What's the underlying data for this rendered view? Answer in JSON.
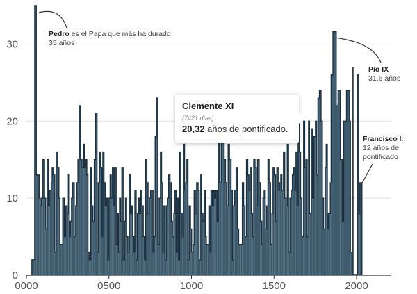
{
  "chart_data": {
    "type": "bar",
    "x_ticks": [
      "0000",
      "0500",
      "1000",
      "1500",
      "2000"
    ],
    "y_ticks": [
      "0",
      "10",
      "20",
      "30"
    ],
    "xlim": [
      0,
      2050
    ],
    "ylim": [
      0,
      35
    ],
    "grid": true,
    "bar_color": "#3e5a6d",
    "outline_color": "#1c3242",
    "points": [
      [
        33,
        2
      ],
      [
        41,
        2
      ],
      [
        50,
        35
      ],
      [
        60,
        13
      ],
      [
        70,
        13
      ],
      [
        77,
        10
      ],
      [
        83,
        9
      ],
      [
        90,
        10
      ],
      [
        100,
        15
      ],
      [
        110,
        10
      ],
      [
        117,
        6
      ],
      [
        125,
        15
      ],
      [
        133,
        9
      ],
      [
        140,
        11
      ],
      [
        150,
        12
      ],
      [
        156,
        14
      ],
      [
        164,
        13
      ],
      [
        172,
        3
      ],
      [
        180,
        16
      ],
      [
        190,
        14
      ],
      [
        197,
        10
      ],
      [
        203,
        4
      ],
      [
        211,
        4
      ],
      [
        220,
        10
      ],
      [
        229,
        5
      ],
      [
        237,
        9
      ],
      [
        247,
        8
      ],
      [
        254,
        13
      ],
      [
        260,
        5
      ],
      [
        266,
        7
      ],
      [
        273,
        10
      ],
      [
        280,
        12
      ],
      [
        290,
        5
      ],
      [
        298,
        9
      ],
      [
        305,
        12
      ],
      [
        312,
        15
      ],
      [
        320,
        22
      ],
      [
        328,
        15
      ],
      [
        337,
        14
      ],
      [
        346,
        17
      ],
      [
        352,
        14
      ],
      [
        360,
        15
      ],
      [
        366,
        13
      ],
      [
        373,
        3
      ],
      [
        380,
        2
      ],
      [
        390,
        14
      ],
      [
        396,
        9
      ],
      [
        403,
        7
      ],
      [
        411,
        15
      ],
      [
        419,
        21
      ],
      [
        428,
        3
      ],
      [
        435,
        12
      ],
      [
        443,
        16
      ],
      [
        450,
        14
      ],
      [
        457,
        5
      ],
      [
        463,
        16
      ],
      [
        470,
        12
      ],
      [
        477,
        9
      ],
      [
        486,
        10
      ],
      [
        493,
        2
      ],
      [
        500,
        10
      ],
      [
        507,
        13
      ],
      [
        514,
        10
      ],
      [
        521,
        14
      ],
      [
        530,
        9
      ],
      [
        536,
        14
      ],
      [
        544,
        4
      ],
      [
        551,
        8
      ],
      [
        557,
        3
      ],
      [
        564,
        10
      ],
      [
        571,
        7
      ],
      [
        578,
        14
      ],
      [
        586,
        2
      ],
      [
        594,
        7
      ],
      [
        600,
        10
      ],
      [
        607,
        5
      ],
      [
        615,
        3
      ],
      [
        623,
        13
      ],
      [
        630,
        8
      ],
      [
        637,
        9
      ],
      [
        644,
        5
      ],
      [
        651,
        3
      ],
      [
        657,
        11
      ],
      [
        665,
        2
      ],
      [
        672,
        8
      ],
      [
        680,
        10
      ],
      [
        686,
        8
      ],
      [
        693,
        11
      ],
      [
        700,
        9
      ],
      [
        708,
        5
      ],
      [
        715,
        2
      ],
      [
        722,
        15
      ],
      [
        730,
        12
      ],
      [
        737,
        8
      ],
      [
        744,
        10
      ],
      [
        752,
        11
      ],
      [
        760,
        11
      ],
      [
        767,
        3
      ],
      [
        773,
        5
      ],
      [
        780,
        18
      ],
      [
        788,
        23
      ],
      [
        796,
        4
      ],
      [
        804,
        10
      ],
      [
        812,
        16
      ],
      [
        819,
        12
      ],
      [
        826,
        3
      ],
      [
        833,
        9
      ],
      [
        840,
        2
      ],
      [
        847,
        9
      ],
      [
        855,
        10
      ],
      [
        862,
        13
      ],
      [
        870,
        12
      ],
      [
        878,
        7
      ],
      [
        885,
        5
      ],
      [
        893,
        8
      ],
      [
        900,
        11
      ],
      [
        907,
        3
      ],
      [
        914,
        10
      ],
      [
        921,
        2
      ],
      [
        928,
        16
      ],
      [
        936,
        8
      ],
      [
        944,
        5
      ],
      [
        951,
        17
      ],
      [
        958,
        11
      ],
      [
        965,
        12
      ],
      [
        972,
        15
      ],
      [
        979,
        2
      ],
      [
        986,
        9
      ],
      [
        994,
        6
      ],
      [
        1001,
        3
      ],
      [
        1009,
        4
      ],
      [
        1016,
        11
      ],
      [
        1024,
        8
      ],
      [
        1031,
        12
      ],
      [
        1040,
        11
      ],
      [
        1047,
        2
      ],
      [
        1056,
        13
      ],
      [
        1062,
        8
      ],
      [
        1070,
        7
      ],
      [
        1077,
        11
      ],
      [
        1084,
        5
      ],
      [
        1090,
        4
      ],
      [
        1098,
        4
      ],
      [
        1105,
        9
      ],
      [
        1112,
        3
      ],
      [
        1118,
        11
      ],
      [
        1126,
        9
      ],
      [
        1133,
        11
      ],
      [
        1140,
        10
      ],
      [
        1147,
        11
      ],
      [
        1155,
        7
      ],
      [
        1162,
        21
      ],
      [
        1170,
        12
      ],
      [
        1180,
        18
      ],
      [
        1190,
        20
      ],
      [
        1198,
        15
      ],
      [
        1206,
        12
      ],
      [
        1214,
        9
      ],
      [
        1222,
        17
      ],
      [
        1230,
        15
      ],
      [
        1240,
        11
      ],
      [
        1248,
        2
      ],
      [
        1255,
        9
      ],
      [
        1262,
        11
      ],
      [
        1270,
        14
      ],
      [
        1278,
        6
      ],
      [
        1286,
        4
      ],
      [
        1293,
        4
      ],
      [
        1300,
        4
      ],
      [
        1308,
        12
      ],
      [
        1316,
        9
      ],
      [
        1324,
        5
      ],
      [
        1333,
        15
      ],
      [
        1341,
        13
      ],
      [
        1348,
        11
      ],
      [
        1355,
        14
      ],
      [
        1363,
        8
      ],
      [
        1370,
        5
      ],
      [
        1377,
        15
      ],
      [
        1385,
        14
      ],
      [
        1393,
        9
      ],
      [
        1400,
        15
      ],
      [
        1410,
        12
      ],
      [
        1418,
        7
      ],
      [
        1426,
        4
      ],
      [
        1433,
        10
      ],
      [
        1440,
        11
      ],
      [
        1447,
        6
      ],
      [
        1455,
        9
      ],
      [
        1463,
        15
      ],
      [
        1470,
        12
      ],
      [
        1479,
        4
      ],
      [
        1487,
        8
      ],
      [
        1494,
        14
      ],
      [
        1502,
        13
      ],
      [
        1510,
        7
      ],
      [
        1517,
        14
      ],
      [
        1525,
        11
      ],
      [
        1533,
        12
      ],
      [
        1541,
        13
      ],
      [
        1548,
        11
      ],
      [
        1557,
        16
      ],
      [
        1565,
        10
      ],
      [
        1573,
        9
      ],
      [
        1580,
        17
      ],
      [
        1588,
        3
      ],
      [
        1596,
        10
      ],
      [
        1603,
        11
      ],
      [
        1611,
        13
      ],
      [
        1619,
        14
      ],
      [
        1627,
        11
      ],
      [
        1633,
        16
      ],
      [
        1640,
        9
      ],
      [
        1646,
        20
      ],
      [
        1653,
        16
      ],
      [
        1661,
        10
      ],
      [
        1669,
        5
      ],
      [
        1679,
        20
      ],
      [
        1686,
        14
      ],
      [
        1693,
        15
      ],
      [
        1701,
        5
      ],
      [
        1709,
        20
      ],
      [
        1715,
        8
      ],
      [
        1725,
        19
      ],
      [
        1733,
        10
      ],
      [
        1741,
        18
      ],
      [
        1751,
        20
      ],
      [
        1758,
        13
      ],
      [
        1766,
        23
      ],
      [
        1775,
        24
      ],
      [
        1785,
        20
      ],
      [
        1793,
        10
      ],
      [
        1800,
        6
      ],
      [
        1809,
        14
      ],
      [
        1816,
        17
      ],
      [
        1823,
        6
      ],
      [
        1829,
        8
      ],
      [
        1841,
        12
      ],
      [
        1846,
        26
      ],
      [
        1857,
        31.6
      ],
      [
        1877,
        22
      ],
      [
        1888,
        24
      ],
      [
        1902,
        15
      ],
      [
        1914,
        7
      ],
      [
        1922,
        20
      ],
      [
        1939,
        24
      ],
      [
        1958,
        20
      ],
      [
        1963,
        3
      ],
      [
        1978,
        27
      ],
      [
        1979,
        0.1
      ],
      [
        2005,
        26
      ],
      [
        2013,
        8
      ],
      [
        2020,
        12
      ]
    ],
    "annotations": {
      "pedro": {
        "name": "Pedro",
        "text": "es el Papa que más ha durado: 35 años"
      },
      "pio": {
        "name": "Pío IX",
        "text": "31,6 años"
      },
      "francisco": {
        "name": "Francisco I",
        "text": ": 12 años de pontificado"
      }
    },
    "tooltip": {
      "title": "Clemente XI",
      "days": "(7421 días)",
      "years_value": "20,32",
      "years_text": "años de pontificado."
    }
  }
}
